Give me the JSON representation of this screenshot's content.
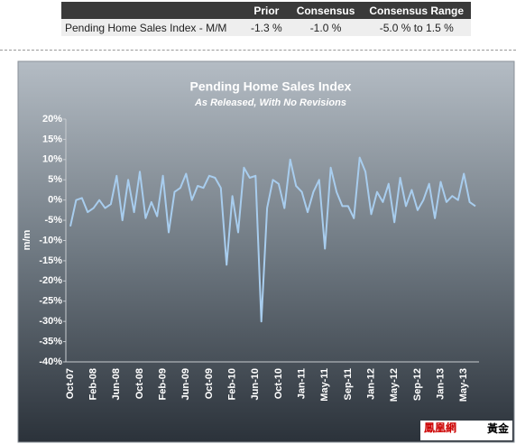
{
  "table": {
    "header": [
      "Prior",
      "Consensus",
      "Consensus Range"
    ],
    "row": [
      "Pending Home Sales Index - M/M",
      "-1.3 %",
      "-1.0 %",
      "-5.0 % to 1.5 %"
    ]
  },
  "logo": {
    "name": "鳳凰網",
    "tag": "黃金"
  },
  "chart_data": {
    "type": "line",
    "title": "Pending Home Sales Index",
    "subtitle": "As Released, With No Revisions",
    "y_label": "m/m",
    "grid": false,
    "color": "#a8cdee",
    "categories": [
      "Oct-07",
      null,
      null,
      null,
      "Feb-08",
      null,
      null,
      null,
      "Jun-08",
      null,
      null,
      null,
      "Oct-08",
      null,
      null,
      null,
      "Feb-09",
      null,
      null,
      null,
      "Jun-09",
      null,
      null,
      null,
      "Oct-09",
      null,
      null,
      null,
      "Feb-10",
      null,
      null,
      null,
      "Jun-10",
      null,
      null,
      null,
      "Oct-10",
      null,
      null,
      null,
      "Jan-11",
      null,
      null,
      null,
      "May-11",
      null,
      null,
      null,
      "Sep-11",
      null,
      null,
      null,
      "Jan-12",
      null,
      null,
      null,
      "May-12",
      null,
      null,
      null,
      "Sep-12",
      null,
      null,
      null,
      "Jan-13",
      null,
      null,
      null,
      "May-13",
      null,
      null
    ],
    "values": [
      -6.5,
      0,
      0.5,
      -3,
      -2,
      0,
      -2,
      -1,
      6,
      -5,
      5,
      -3,
      7,
      -4.5,
      -0.5,
      -4,
      6,
      -8,
      2,
      3,
      6.5,
      0,
      3.5,
      3,
      6,
      5.5,
      3,
      -16,
      1,
      -8,
      8,
      5.5,
      6,
      -30,
      -2,
      5,
      4,
      -2,
      10,
      3.5,
      2,
      -3,
      2,
      5,
      -12,
      8,
      2,
      -1.5,
      -1.5,
      -4.5,
      10.5,
      7,
      -3.5,
      2,
      -0.5,
      4,
      -5.5,
      5.5,
      -1.5,
      2.5,
      -2.5,
      0,
      4,
      -4.5,
      4.5,
      -0.5,
      1,
      0,
      6.5,
      -0.5,
      -1.5
    ],
    "ylim": [
      -40,
      20
    ],
    "yticks": [
      {
        "value": -40,
        "label": "-40%"
      },
      {
        "value": -35,
        "label": "-35%"
      },
      {
        "value": -30,
        "label": "-30%"
      },
      {
        "value": -25,
        "label": "-25%"
      },
      {
        "value": -20,
        "label": "-20%"
      },
      {
        "value": -15,
        "label": "-15%"
      },
      {
        "value": -10,
        "label": "-10%"
      },
      {
        "value": -5,
        "label": "-5%"
      },
      {
        "value": 0,
        "label": "0%"
      },
      {
        "value": 5,
        "label": "5%"
      },
      {
        "value": 10,
        "label": "10%"
      },
      {
        "value": 15,
        "label": "15%"
      },
      {
        "value": 20,
        "label": "20%"
      }
    ]
  }
}
